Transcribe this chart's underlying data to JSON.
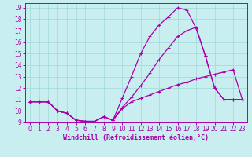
{
  "title": "",
  "xlabel": "Windchill (Refroidissement éolien,°C)",
  "ylabel": "",
  "xlim": [
    -0.5,
    23.5
  ],
  "ylim": [
    9,
    19.4
  ],
  "yticks": [
    9,
    10,
    11,
    12,
    13,
    14,
    15,
    16,
    17,
    18,
    19
  ],
  "xticks": [
    0,
    1,
    2,
    3,
    4,
    5,
    6,
    7,
    8,
    9,
    10,
    11,
    12,
    13,
    14,
    15,
    16,
    17,
    18,
    19,
    20,
    21,
    22,
    23
  ],
  "bg_color": "#c8eef0",
  "line_color": "#aa00aa",
  "grid_color": "#a0d8d8",
  "line1_x": [
    0,
    1,
    2,
    3,
    4,
    5,
    6,
    7,
    8,
    9,
    10,
    11,
    12,
    13,
    14,
    15,
    16,
    17,
    18,
    19,
    20,
    21,
    22,
    23
  ],
  "line1_y": [
    10.8,
    10.8,
    10.8,
    10.0,
    9.8,
    9.2,
    9.1,
    9.1,
    9.5,
    9.2,
    10.2,
    10.8,
    11.1,
    11.4,
    11.7,
    12.0,
    12.3,
    12.5,
    12.8,
    13.0,
    13.2,
    13.4,
    13.6,
    11.0
  ],
  "line2_x": [
    0,
    2,
    3,
    4,
    5,
    6,
    7,
    8,
    9,
    10,
    11,
    12,
    13,
    14,
    15,
    16,
    17,
    18,
    19,
    20,
    21,
    22,
    23
  ],
  "line2_y": [
    10.8,
    10.8,
    10.0,
    9.8,
    9.2,
    9.1,
    9.1,
    9.5,
    9.2,
    11.1,
    13.0,
    15.0,
    16.5,
    17.5,
    18.2,
    19.0,
    18.8,
    17.2,
    14.8,
    12.0,
    11.0,
    11.0,
    11.0
  ],
  "line3_x": [
    0,
    2,
    3,
    4,
    5,
    6,
    7,
    8,
    9,
    10,
    11,
    12,
    13,
    14,
    15,
    16,
    17,
    18,
    19,
    20,
    21,
    22,
    23
  ],
  "line3_y": [
    10.8,
    10.8,
    10.0,
    9.8,
    9.2,
    9.1,
    9.1,
    9.5,
    9.2,
    10.3,
    11.2,
    12.2,
    13.3,
    14.5,
    15.5,
    16.5,
    17.0,
    17.3,
    14.8,
    12.0,
    11.0,
    11.0,
    11.0
  ]
}
